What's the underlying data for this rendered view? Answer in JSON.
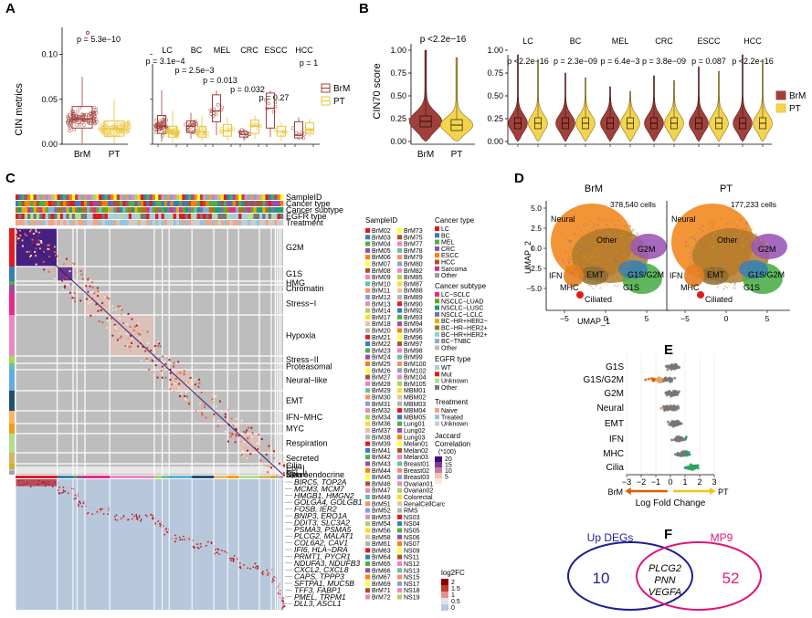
{
  "panels": {
    "A": {
      "letter": "A",
      "ylabel": "CIN metrics",
      "yticks": [
        "0.00",
        "0.05",
        "0.10"
      ],
      "left_groups": [
        "BrM",
        "PT"
      ],
      "left_pval": "p = 5.3e−10",
      "right_groups": [
        "LC",
        "BC",
        "MEL",
        "CRC",
        "ESCC",
        "HCC"
      ],
      "right_pvals": [
        "p = 3.1e−4",
        "p = 2.5e−3",
        "p = 0.013",
        "p = 0.032",
        "p = 0.27",
        "p = 1"
      ],
      "legend": [
        "BrM",
        "PT"
      ]
    },
    "B": {
      "letter": "B",
      "ylabel": "CIN70 score",
      "yticks": [
        "0.00",
        "0.25",
        "0.50",
        "0.75",
        "1.00"
      ],
      "left_groups": [
        "BrM",
        "PT"
      ],
      "left_pval": "p <2.2e−16",
      "right_groups": [
        "LC",
        "BC",
        "MEL",
        "CRC",
        "ESCC",
        "HCC"
      ],
      "right_pvals": [
        "p <2.2e−16",
        "p = 2.3e−09",
        "p = 6.4e−3",
        "p = 3.8e−09",
        "p = 0.087",
        "p <2.2e−16"
      ],
      "legend": [
        "BrM",
        "PT"
      ]
    },
    "C": {
      "letter": "C",
      "annotation_tracks": [
        "SampleID",
        "Cancer type",
        "Cancer subtype",
        "EGFR type",
        "Treatment"
      ],
      "programs": [
        "G2M",
        "G1S",
        "HMG",
        "Chromatin",
        "Stress−I",
        "Hypoxia",
        "Stress−II",
        "Proteasomal",
        "Neural−like",
        "EMT",
        "IFN−MHC",
        "MYC",
        "Respiration",
        "Secreted",
        "Cilia",
        "Epi−I",
        "Epi−II",
        "Skin",
        "Neuroendocrine"
      ],
      "genes": [
        "BIRC5, TOP2A",
        "MCM3, MCM7",
        "HMGB1, HMGN2",
        "GOLGA4, GOLGB1",
        "FOSB, IER2",
        "BNIP3, ERO1A",
        "DDIT3, SLC3A2",
        "PSMA3, PSMA5",
        "PLCG2, MALAT1",
        "COL6A2, CAV1",
        "IFI6, HLA−DRA",
        "PRMT1, PYCR1",
        "NDUFA3, NDUFB3",
        "CXCL2, CXCL8",
        "CAPS, TPPP3",
        "SFTPA1, MUC5B",
        "TFF3, FABP1",
        "PMEL, TRPM1",
        "DLL3, ASCL1"
      ],
      "sample_title": "SampleID",
      "samples_col1": [
        "BrM02",
        "BrM03",
        "BrM04",
        "BrM05",
        "BrM06",
        "BrM07",
        "BrM08",
        "BrM09",
        "BrM10",
        "BrM11",
        "BrM12",
        "BrM13",
        "BrM14",
        "BrM17",
        "BrM18",
        "BrM20",
        "BrM21",
        "BrM22",
        "BrM23",
        "BrM24",
        "BrM25",
        "BrM26",
        "BrM27",
        "BrM28",
        "BrM29",
        "BrM30",
        "BrM31",
        "BrM32",
        "BrM34",
        "BrM36",
        "BrM37",
        "BrM38",
        "BrM39",
        "BrM41",
        "BrM42",
        "BrM43",
        "BrM44",
        "BrM45",
        "BrM46",
        "BrM47",
        "BrM49",
        "BrM51",
        "BrM52",
        "BrM53",
        "BrM54",
        "BrM56",
        "BrM58",
        "BrM61",
        "BrM63",
        "BrM64",
        "BrM65",
        "BrM66",
        "BrM67",
        "BrM69",
        "BrM71",
        "BrM72"
      ],
      "samples_col2": [
        "BrM73",
        "BrM75",
        "BrM77",
        "BrM78",
        "BrM79",
        "BrM80",
        "BrM82",
        "BrM85",
        "BrM87",
        "BrM88",
        "BrM89",
        "BrM90",
        "BrM92",
        "BrM93",
        "BrM94",
        "BrM95",
        "BrM96",
        "BrM97",
        "BrM98",
        "BrM99",
        "BrM100",
        "BrM102",
        "BrM104",
        "BrM105",
        "MBM01",
        "MBM02",
        "MBM03",
        "MBM04",
        "MBM05",
        "Lung01",
        "Lung02",
        "Lung03",
        "Melan01",
        "Melan02",
        "Melan03",
        "Breast01",
        "Breast02",
        "Breast03",
        "Ovarian01",
        "Ovarian02",
        "Colorectal",
        "RenalCellCarc",
        "RMS",
        "NS03",
        "NS04",
        "NS05",
        "NS06",
        "NS07",
        "NS09",
        "NS11",
        "NS12",
        "NS13",
        "NS15",
        "NS17",
        "NS18",
        "NS19"
      ],
      "cancer_type_title": "Cancer type",
      "cancer_types": [
        {
          "label": "LC",
          "color": "#e41a1c"
        },
        {
          "label": "BC",
          "color": "#377eb8"
        },
        {
          "label": "MEL",
          "color": "#4daf4a"
        },
        {
          "label": "CRC",
          "color": "#984ea3"
        },
        {
          "label": "ESCC",
          "color": "#ff7f00"
        },
        {
          "label": "HCC",
          "color": "#a65628"
        },
        {
          "label": "Sarcoma",
          "color": "#e7298a"
        },
        {
          "label": "Other",
          "color": "#999999"
        }
      ],
      "subtype_title": "Cancer subtype",
      "subtypes": [
        {
          "label": "LC−SCLC",
          "color": "#e7298a"
        },
        {
          "label": "NSCLC−LUAD",
          "color": "#66a61e"
        },
        {
          "label": "NSCLC−LUSC",
          "color": "#1b9e77"
        },
        {
          "label": "NSCLC−LCLC",
          "color": "#7570b3"
        },
        {
          "label": "BC−HR+HER2−",
          "color": "#e6ab02"
        },
        {
          "label": "BC−HR−HER2+",
          "color": "#a6761d"
        },
        {
          "label": "BC−HR+HER2+",
          "color": "#8dd3c7"
        },
        {
          "label": "BC−TNBC",
          "color": "#80b1d3"
        },
        {
          "label": "Other",
          "color": "#bbbbbb"
        }
      ],
      "egfr_title": "EGFR type",
      "egfr": [
        {
          "label": "WT",
          "color": "#a6cee3"
        },
        {
          "label": "Mut",
          "color": "#e31a1c"
        },
        {
          "label": "Unknown",
          "color": "#b2df8a"
        },
        {
          "label": "Other",
          "color": "#777777"
        }
      ],
      "treatment_title": "Treatment",
      "treatments": [
        {
          "label": "Naive",
          "color": "#f4a582"
        },
        {
          "label": "Treated",
          "color": "#92c5de"
        },
        {
          "label": "Unknown",
          "color": "#cccccc"
        }
      ],
      "jaccard_title": "Jaccard Correlation (*100)",
      "jaccard_ticks": [
        "20",
        "15",
        "10",
        "5"
      ],
      "log2fc_title": "log2FC",
      "log2fc_ticks": [
        "2",
        "1.5",
        "1",
        "0.5",
        "0"
      ]
    },
    "D": {
      "letter": "D",
      "brm_title": "BrM",
      "pt_title": "PT",
      "brm_cells": "378,540 cells",
      "pt_cells": "177,233 cells",
      "xlabel": "UMAP_1",
      "ylabel": "UMAP_2",
      "xticks": [
        "−5",
        "0",
        "5"
      ],
      "yticks": [
        "5.0",
        "2.5",
        "0.0",
        "−2.5",
        "−5.0"
      ],
      "clusters": [
        "Neural",
        "Other",
        "G2M",
        "EMT",
        "G1S/G2M",
        "IFN",
        "G1S",
        "MHC",
        "Ciliated"
      ],
      "colors": {
        "neural": "#f28e2b",
        "other": "#b07a2a",
        "g2m": "#9b59b6",
        "g1s": "#4daf4a",
        "g1sg2m": "#377eb8",
        "emt": "#8c6d31",
        "ifn": "#e67e22",
        "ciliated": "#e31a1c"
      }
    },
    "E": {
      "letter": "E",
      "rows": [
        "G1S",
        "G1S/G2M",
        "G2M",
        "Neural",
        "EMT",
        "IFN",
        "MHC",
        "Cilia"
      ],
      "xticks": [
        "−3",
        "−2",
        "−1",
        "0",
        "1",
        "2",
        "3"
      ],
      "xlabel": "Log Fold Change",
      "left_arrow": "BrM",
      "right_arrow": "PT",
      "colors": {
        "brm": "#d95f02",
        "pt": "#f1c40f"
      }
    },
    "F": {
      "letter": "F",
      "left_title": "Up DEGs",
      "right_title": "MP9",
      "left_count": "10",
      "right_count": "52",
      "overlap": [
        "PLCG2",
        "PNN",
        "VEGFA"
      ],
      "colors": {
        "left": "#1f1f8f",
        "right": "#e0157c"
      }
    }
  },
  "colors": {
    "brm": "#a0403a",
    "pt": "#f3d44d",
    "heat_bg": "#b7c8dc",
    "heat_grey": "#bdbdbd",
    "heat_dark": "#3a0f7a"
  }
}
